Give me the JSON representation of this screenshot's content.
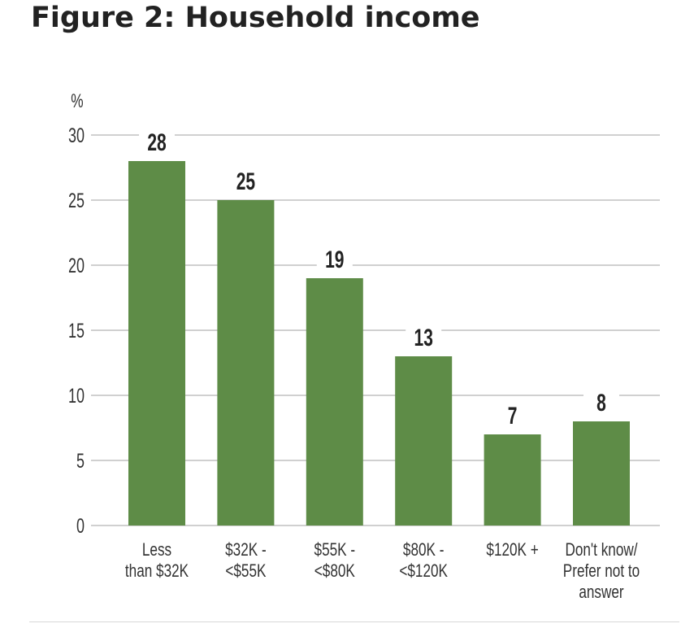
{
  "figure": {
    "title": "Figure 2: Household income"
  },
  "chart_data": {
    "type": "bar",
    "title": "Figure 2: Household income",
    "ylabel": "%",
    "xlabel": "",
    "ylim": [
      0,
      30
    ],
    "yticks": [
      0,
      5,
      10,
      15,
      20,
      25,
      30
    ],
    "grid": true,
    "categories": [
      [
        "Less",
        "than $32K"
      ],
      [
        "$32K -",
        "<$55K"
      ],
      [
        "$55K -",
        "<$80K"
      ],
      [
        "$80K -",
        "<$120K"
      ],
      [
        "$120K +"
      ],
      [
        "Don't know/",
        "Prefer not to",
        "answer"
      ]
    ],
    "values": [
      28,
      25,
      19,
      13,
      7,
      8
    ],
    "value_labels": [
      "28",
      "25",
      "19",
      "13",
      "7",
      "8"
    ],
    "bar_color": "#5e8c47",
    "grid_color": "#b5b5b5"
  }
}
